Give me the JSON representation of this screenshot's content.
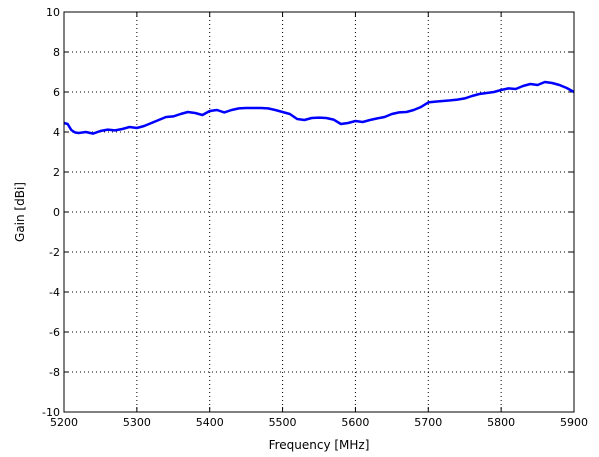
{
  "chart_data": {
    "type": "line",
    "title": "",
    "xlabel": "Frequency [MHz]",
    "ylabel": "Gain [dBi]",
    "xlim": [
      5200,
      5900
    ],
    "ylim": [
      -10,
      10
    ],
    "xticks": [
      5200,
      5300,
      5400,
      5500,
      5600,
      5700,
      5800,
      5900
    ],
    "yticks": [
      -10,
      -8,
      -6,
      -4,
      -2,
      0,
      2,
      4,
      6,
      8,
      10
    ],
    "grid": true,
    "legend": "none",
    "series": [
      {
        "color": "#0000ff",
        "x": [
          5200,
          5205,
          5210,
          5215,
          5220,
          5230,
          5240,
          5250,
          5260,
          5270,
          5280,
          5290,
          5300,
          5310,
          5320,
          5330,
          5340,
          5350,
          5360,
          5370,
          5380,
          5390,
          5400,
          5410,
          5420,
          5430,
          5440,
          5450,
          5460,
          5470,
          5480,
          5490,
          5500,
          5510,
          5520,
          5530,
          5540,
          5550,
          5560,
          5570,
          5580,
          5590,
          5600,
          5610,
          5620,
          5630,
          5640,
          5650,
          5660,
          5670,
          5680,
          5690,
          5700,
          5710,
          5720,
          5730,
          5740,
          5750,
          5760,
          5770,
          5780,
          5790,
          5800,
          5810,
          5820,
          5830,
          5840,
          5850,
          5860,
          5870,
          5880,
          5890,
          5900
        ],
        "y": [
          4.45,
          4.4,
          4.1,
          3.98,
          3.95,
          4.0,
          3.92,
          4.05,
          4.12,
          4.08,
          4.15,
          4.25,
          4.2,
          4.3,
          4.45,
          4.6,
          4.75,
          4.78,
          4.9,
          5.0,
          4.95,
          4.85,
          5.05,
          5.1,
          4.98,
          5.1,
          5.18,
          5.2,
          5.2,
          5.2,
          5.18,
          5.1,
          5.0,
          4.9,
          4.65,
          4.6,
          4.7,
          4.72,
          4.7,
          4.62,
          4.4,
          4.45,
          4.55,
          4.5,
          4.6,
          4.68,
          4.75,
          4.9,
          4.98,
          5.0,
          5.1,
          5.25,
          5.48,
          5.52,
          5.55,
          5.58,
          5.62,
          5.68,
          5.8,
          5.9,
          5.95,
          6.0,
          6.1,
          6.18,
          6.15,
          6.3,
          6.4,
          6.35,
          6.5,
          6.45,
          6.35,
          6.2,
          6.0
        ]
      }
    ]
  }
}
